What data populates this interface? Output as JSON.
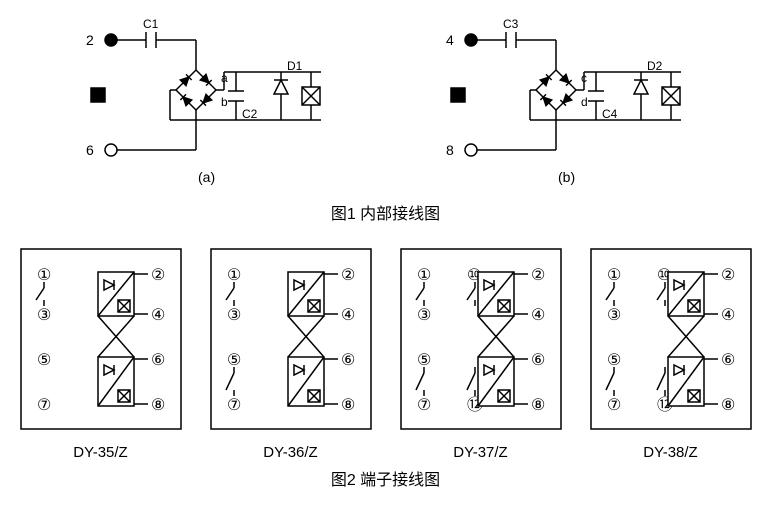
{
  "figure1": {
    "caption": "图1  内部接线图",
    "stroke_color": "#000000",
    "stroke_width": 1.5,
    "text_color": "#000000",
    "font_size_main": 14,
    "font_size_label": 12,
    "panels": [
      {
        "tag": "(a)",
        "top_terminal": "2",
        "bottom_terminal": "6",
        "cap_top": "C1",
        "cap_mid": "C2",
        "diode_label": "D1",
        "node_top": "a",
        "node_bot": "b",
        "top_filled": true
      },
      {
        "tag": "(b)",
        "top_terminal": "4",
        "bottom_terminal": "8",
        "cap_top": "C3",
        "cap_mid": "C4",
        "diode_label": "D2",
        "node_top": "c",
        "node_bot": "d",
        "top_filled": true
      }
    ]
  },
  "figure2": {
    "caption": "图2  端子接线图",
    "stroke_color": "#000000",
    "stroke_width": 1.5,
    "text_color": "#000000",
    "font_size_terminal": 11,
    "terminals": [
      "1",
      "2",
      "3",
      "4",
      "5",
      "6",
      "7",
      "8"
    ],
    "extra_terminals": [
      "10",
      "12"
    ],
    "models": [
      {
        "label": "DY-35/Z",
        "extra_col": false,
        "contacts": {
          "l13": "open",
          "l57": "none",
          "mid_extra": "none"
        }
      },
      {
        "label": "DY-36/Z",
        "extra_col": false,
        "contacts": {
          "l13": "open",
          "l57": "open",
          "mid_extra": "none"
        }
      },
      {
        "label": "DY-37/Z",
        "extra_col": true,
        "contacts": {
          "l13": "open",
          "l57": "open",
          "mid_extra": "open"
        }
      },
      {
        "label": "DY-38/Z",
        "extra_col": true,
        "contacts": {
          "l13": "open",
          "l57": "open",
          "mid_extra": "open"
        }
      }
    ]
  }
}
